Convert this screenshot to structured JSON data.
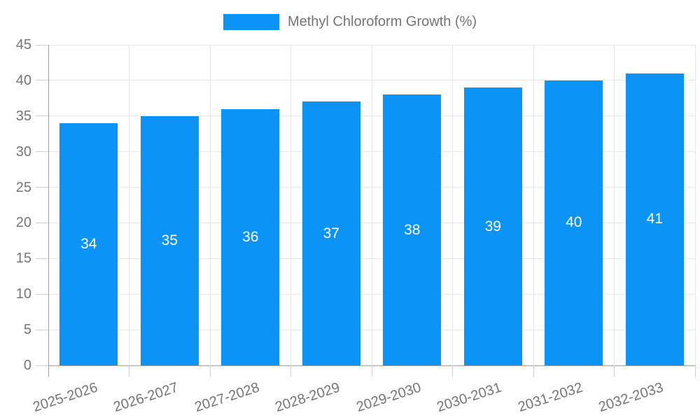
{
  "chart_data": {
    "type": "bar",
    "title": "Methyl Chloroform Growth (%)",
    "categories": [
      "2025-2026",
      "2026-2027",
      "2027-2028",
      "2028-2029",
      "2029-2030",
      "2030-2031",
      "2031-2032",
      "2032-2033"
    ],
    "values": [
      34,
      35,
      36,
      37,
      38,
      39,
      40,
      41
    ],
    "bar_value_labels": [
      "34",
      "35",
      "36",
      "37",
      "38",
      "39",
      "40",
      "41"
    ],
    "xlabel": "",
    "ylabel": "",
    "ylim": [
      0,
      45
    ],
    "yticks": [
      0,
      5,
      10,
      15,
      20,
      25,
      30,
      35,
      40,
      45
    ],
    "grid": true,
    "legend_position": "top-center",
    "bar_labels_inside": true,
    "colors": {
      "bar": "#0b94f6",
      "grid": "#e7e7e7",
      "axis": "#9e9e9e",
      "tick": "#cfcfcf",
      "text": "#757575",
      "bar_label": "#ffffff",
      "background": "#ffffff"
    }
  }
}
